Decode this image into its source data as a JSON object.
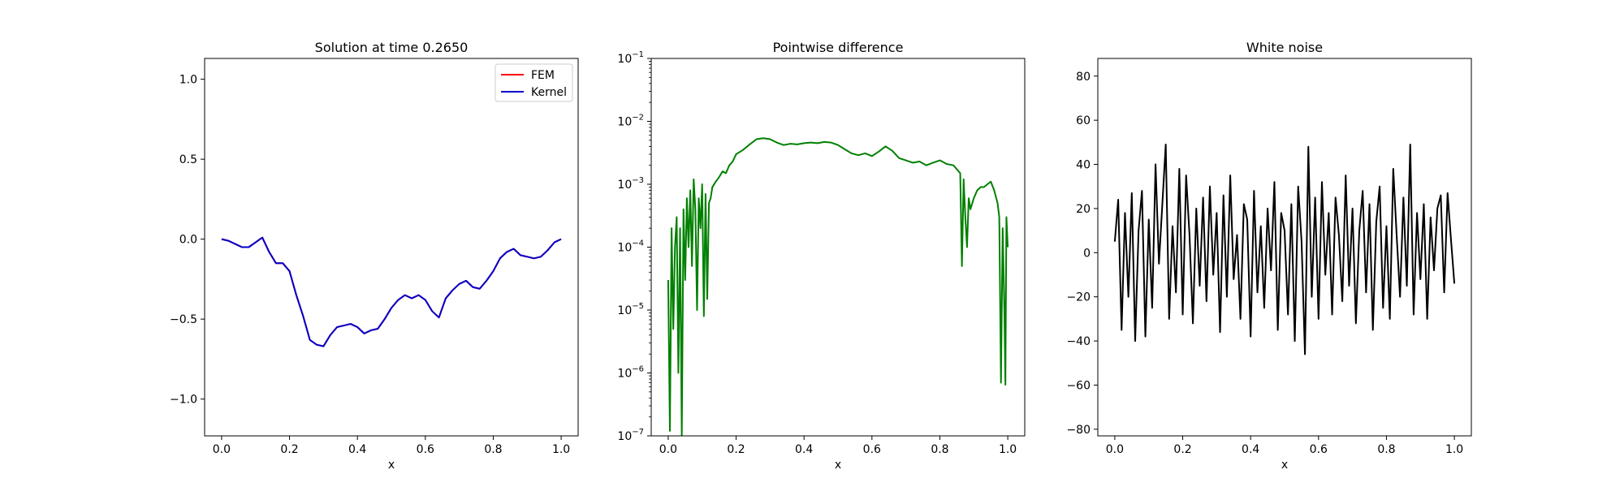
{
  "chart_data": [
    {
      "type": "line",
      "title": "Solution at time 0.2650",
      "xlabel": "x",
      "ylabel": "",
      "xlim": [
        -0.05,
        1.05
      ],
      "ylim": [
        -1.23,
        1.13
      ],
      "xticks": [
        0,
        0.2,
        0.4,
        0.6,
        0.8,
        1.0
      ],
      "xtick_labels": [
        "0.0",
        "0.2",
        "0.4",
        "0.6",
        "0.8",
        "1.0"
      ],
      "yticks": [
        -1.0,
        -0.5,
        0.0,
        0.5,
        1.0
      ],
      "ytick_labels": [
        "−1.0",
        "−0.5",
        "0.0",
        "0.5",
        "1.0"
      ],
      "yscale": "linear",
      "grid": false,
      "legend": "top-right",
      "series": [
        {
          "name": "FEM",
          "color": "#ff0000",
          "x": [
            0.0,
            0.02,
            0.04,
            0.06,
            0.08,
            0.1,
            0.12,
            0.14,
            0.16,
            0.18,
            0.2,
            0.22,
            0.24,
            0.26,
            0.28,
            0.3,
            0.32,
            0.34,
            0.36,
            0.38,
            0.4,
            0.42,
            0.44,
            0.46,
            0.48,
            0.5,
            0.52,
            0.54,
            0.56,
            0.58,
            0.6,
            0.62,
            0.64,
            0.66,
            0.68,
            0.7,
            0.72,
            0.74,
            0.76,
            0.78,
            0.8,
            0.82,
            0.84,
            0.86,
            0.88,
            0.9,
            0.92,
            0.94,
            0.96,
            0.98,
            1.0
          ],
          "y": [
            0.0,
            -0.01,
            -0.03,
            -0.05,
            -0.05,
            -0.02,
            0.01,
            -0.08,
            -0.15,
            -0.15,
            -0.2,
            -0.35,
            -0.48,
            -0.63,
            -0.66,
            -0.67,
            -0.6,
            -0.55,
            -0.54,
            -0.53,
            -0.55,
            -0.59,
            -0.57,
            -0.56,
            -0.5,
            -0.43,
            -0.38,
            -0.35,
            -0.37,
            -0.35,
            -0.38,
            -0.45,
            -0.49,
            -0.37,
            -0.32,
            -0.28,
            -0.26,
            -0.3,
            -0.31,
            -0.26,
            -0.2,
            -0.12,
            -0.08,
            -0.06,
            -0.1,
            -0.11,
            -0.12,
            -0.11,
            -0.07,
            -0.02,
            0.0
          ]
        },
        {
          "name": "Kernel",
          "color": "#0000cc",
          "x": [
            0.0,
            0.02,
            0.04,
            0.06,
            0.08,
            0.1,
            0.12,
            0.14,
            0.16,
            0.18,
            0.2,
            0.22,
            0.24,
            0.26,
            0.28,
            0.3,
            0.32,
            0.34,
            0.36,
            0.38,
            0.4,
            0.42,
            0.44,
            0.46,
            0.48,
            0.5,
            0.52,
            0.54,
            0.56,
            0.58,
            0.6,
            0.62,
            0.64,
            0.66,
            0.68,
            0.7,
            0.72,
            0.74,
            0.76,
            0.78,
            0.8,
            0.82,
            0.84,
            0.86,
            0.88,
            0.9,
            0.92,
            0.94,
            0.96,
            0.98,
            1.0
          ],
          "y": [
            0.0,
            -0.01,
            -0.03,
            -0.05,
            -0.05,
            -0.02,
            0.01,
            -0.08,
            -0.15,
            -0.15,
            -0.2,
            -0.35,
            -0.48,
            -0.63,
            -0.66,
            -0.67,
            -0.6,
            -0.55,
            -0.54,
            -0.53,
            -0.55,
            -0.59,
            -0.57,
            -0.56,
            -0.5,
            -0.43,
            -0.38,
            -0.35,
            -0.37,
            -0.35,
            -0.38,
            -0.45,
            -0.49,
            -0.37,
            -0.32,
            -0.28,
            -0.26,
            -0.3,
            -0.31,
            -0.26,
            -0.2,
            -0.12,
            -0.08,
            -0.06,
            -0.1,
            -0.11,
            -0.12,
            -0.11,
            -0.07,
            -0.02,
            0.0
          ]
        }
      ]
    },
    {
      "type": "line",
      "title": "Pointwise difference",
      "xlabel": "x",
      "ylabel": "",
      "xlim": [
        -0.05,
        1.05
      ],
      "ylim": [
        1e-07,
        0.1
      ],
      "xticks": [
        0,
        0.2,
        0.4,
        0.6,
        0.8,
        1.0
      ],
      "xtick_labels": [
        "0.0",
        "0.2",
        "0.4",
        "0.6",
        "0.8",
        "1.0"
      ],
      "yticks": [
        1e-07,
        1e-06,
        1e-05,
        0.0001,
        0.001,
        0.01,
        0.1
      ],
      "ytick_mantissa": [
        "10",
        "10",
        "10",
        "10",
        "10",
        "10",
        "10"
      ],
      "ytick_exponents": [
        "−7",
        "−6",
        "−5",
        "−4",
        "−3",
        "−2",
        "−1"
      ],
      "yscale": "log",
      "grid": false,
      "legend": "none",
      "series": [
        {
          "color": "#008000",
          "x": [
            0.0,
            0.005,
            0.01,
            0.015,
            0.02,
            0.025,
            0.03,
            0.035,
            0.04,
            0.045,
            0.05,
            0.055,
            0.06,
            0.065,
            0.07,
            0.075,
            0.08,
            0.085,
            0.09,
            0.095,
            0.1,
            0.105,
            0.11,
            0.115,
            0.12,
            0.125,
            0.13,
            0.14,
            0.15,
            0.16,
            0.17,
            0.18,
            0.19,
            0.2,
            0.22,
            0.24,
            0.26,
            0.28,
            0.3,
            0.32,
            0.34,
            0.36,
            0.38,
            0.4,
            0.42,
            0.44,
            0.46,
            0.48,
            0.5,
            0.52,
            0.54,
            0.56,
            0.58,
            0.6,
            0.62,
            0.64,
            0.66,
            0.68,
            0.7,
            0.72,
            0.74,
            0.76,
            0.78,
            0.8,
            0.82,
            0.84,
            0.86,
            0.865,
            0.87,
            0.875,
            0.88,
            0.885,
            0.89,
            0.9,
            0.91,
            0.92,
            0.93,
            0.94,
            0.95,
            0.96,
            0.97,
            0.975,
            0.98,
            0.985,
            0.99,
            0.993,
            0.996,
            1.0
          ],
          "y": [
            3e-05,
            1.2e-07,
            0.0002,
            5e-06,
            0.0001,
            0.0003,
            1e-06,
            0.0002,
            1e-07,
            0.0004,
            3e-05,
            0.0006,
            0.0001,
            0.0008,
            5e-05,
            0.0012,
            0.0004,
            1e-05,
            0.0006,
            0.0002,
            0.001,
            8e-06,
            0.0007,
            1.5e-05,
            0.0005,
            0.0006,
            0.0009,
            0.0011,
            0.0013,
            0.0016,
            0.0015,
            0.002,
            0.0023,
            0.003,
            0.0035,
            0.0043,
            0.0052,
            0.0054,
            0.0052,
            0.0046,
            0.0042,
            0.0044,
            0.0043,
            0.0045,
            0.0046,
            0.0045,
            0.0047,
            0.0046,
            0.0042,
            0.0036,
            0.0031,
            0.0029,
            0.0031,
            0.0028,
            0.0033,
            0.004,
            0.0034,
            0.0026,
            0.0024,
            0.0022,
            0.0023,
            0.002,
            0.0022,
            0.0024,
            0.0021,
            0.002,
            0.0015,
            5e-05,
            0.0012,
            0.0003,
            0.0001,
            0.0006,
            0.0004,
            0.0006,
            0.0008,
            0.0009,
            0.0009,
            0.001,
            0.0011,
            0.0008,
            0.0005,
            0.0003,
            7e-07,
            0.0002,
            1e-05,
            6.5e-07,
            0.0003,
            0.0001
          ]
        }
      ]
    },
    {
      "type": "line",
      "title": "White noise",
      "xlabel": "x",
      "ylabel": "",
      "xlim": [
        -0.05,
        1.05
      ],
      "ylim": [
        -83,
        88
      ],
      "xticks": [
        0,
        0.2,
        0.4,
        0.6,
        0.8,
        1.0
      ],
      "xtick_labels": [
        "0.0",
        "0.2",
        "0.4",
        "0.6",
        "0.8",
        "1.0"
      ],
      "yticks": [
        -80,
        -60,
        -40,
        -20,
        0,
        20,
        40,
        60,
        80
      ],
      "ytick_labels": [
        "−80",
        "−60",
        "−40",
        "−20",
        "0",
        "20",
        "40",
        "60",
        "80"
      ],
      "yscale": "linear",
      "grid": false,
      "legend": "none",
      "series": [
        {
          "color": "#000000",
          "x": [
            0.0,
            0.01,
            0.02,
            0.03,
            0.04,
            0.05,
            0.06,
            0.07,
            0.08,
            0.09,
            0.1,
            0.11,
            0.12,
            0.13,
            0.14,
            0.15,
            0.16,
            0.17,
            0.18,
            0.19,
            0.2,
            0.21,
            0.22,
            0.23,
            0.24,
            0.25,
            0.26,
            0.27,
            0.28,
            0.29,
            0.3,
            0.31,
            0.32,
            0.33,
            0.34,
            0.35,
            0.36,
            0.37,
            0.38,
            0.39,
            0.4,
            0.41,
            0.42,
            0.43,
            0.44,
            0.45,
            0.46,
            0.47,
            0.48,
            0.49,
            0.5,
            0.51,
            0.52,
            0.53,
            0.54,
            0.55,
            0.56,
            0.57,
            0.58,
            0.59,
            0.6,
            0.61,
            0.62,
            0.63,
            0.64,
            0.65,
            0.66,
            0.67,
            0.68,
            0.69,
            0.7,
            0.71,
            0.72,
            0.73,
            0.74,
            0.75,
            0.76,
            0.77,
            0.78,
            0.79,
            0.8,
            0.81,
            0.82,
            0.83,
            0.84,
            0.85,
            0.86,
            0.87,
            0.88,
            0.89,
            0.9,
            0.91,
            0.92,
            0.93,
            0.94,
            0.95,
            0.96,
            0.97,
            0.98,
            0.99,
            1.0
          ],
          "y": [
            5,
            24,
            -35,
            18,
            -20,
            27,
            -40,
            10,
            28,
            -38,
            15,
            -25,
            40,
            -5,
            22,
            49,
            -30,
            12,
            -18,
            38,
            -28,
            35,
            8,
            -32,
            20,
            -15,
            25,
            -22,
            30,
            -10,
            18,
            -36,
            26,
            -20,
            35,
            -12,
            8,
            -30,
            22,
            15,
            -38,
            28,
            -18,
            12,
            -25,
            20,
            -8,
            32,
            -35,
            18,
            10,
            -28,
            22,
            -40,
            30,
            5,
            -46,
            48,
            -20,
            25,
            -30,
            32,
            -10,
            18,
            -28,
            25,
            8,
            -22,
            35,
            -15,
            20,
            -32,
            10,
            28,
            -18,
            22,
            -35,
            14,
            30,
            -25,
            12,
            -30,
            38,
            8,
            -20,
            25,
            -15,
            49,
            -28,
            18,
            -12,
            22,
            -30,
            16,
            -8,
            20,
            26,
            -18,
            27,
            6,
            -14
          ]
        }
      ]
    }
  ]
}
